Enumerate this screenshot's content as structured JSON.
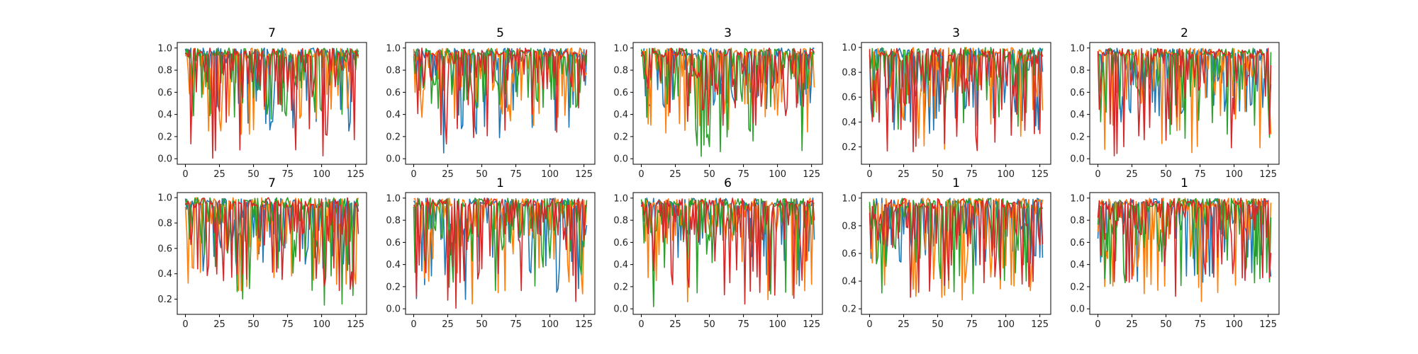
{
  "figure": {
    "background": "#ffffff",
    "series_colors": [
      "#1f77b4",
      "#ff7f0e",
      "#2ca02c",
      "#d62728"
    ]
  },
  "chart_data": [
    {
      "type": "line",
      "title": "7",
      "ylim": [
        -0.05,
        1.05
      ],
      "xlim": [
        -6,
        133
      ],
      "yticks": [
        0.0,
        0.2,
        0.4,
        0.6,
        0.8,
        1.0
      ],
      "xticks": [
        0,
        25,
        50,
        75,
        100,
        125
      ],
      "n_points": 128,
      "min_values": [
        0.25,
        0.22,
        0.3,
        0.0
      ],
      "series": [
        {
          "color": "#1f77b4"
        },
        {
          "color": "#ff7f0e"
        },
        {
          "color": "#2ca02c"
        },
        {
          "color": "#d62728"
        }
      ]
    },
    {
      "type": "line",
      "title": "5",
      "ylim": [
        -0.05,
        1.05
      ],
      "xlim": [
        -6,
        133
      ],
      "yticks": [
        0.0,
        0.2,
        0.4,
        0.6,
        0.8,
        1.0
      ],
      "xticks": [
        0,
        25,
        50,
        75,
        100,
        125
      ],
      "n_points": 128,
      "min_values": [
        0.01,
        0.3,
        0.45,
        0.05
      ],
      "series": [
        {
          "color": "#1f77b4"
        },
        {
          "color": "#ff7f0e"
        },
        {
          "color": "#2ca02c"
        },
        {
          "color": "#d62728"
        }
      ]
    },
    {
      "type": "line",
      "title": "3",
      "ylim": [
        -0.05,
        1.05
      ],
      "xlim": [
        -6,
        133
      ],
      "yticks": [
        0.0,
        0.2,
        0.4,
        0.6,
        0.8,
        1.0
      ],
      "xticks": [
        0,
        25,
        50,
        75,
        100,
        125
      ],
      "n_points": 128,
      "min_values": [
        0.45,
        0.2,
        0.0,
        0.3
      ],
      "series": [
        {
          "color": "#1f77b4"
        },
        {
          "color": "#ff7f0e"
        },
        {
          "color": "#2ca02c"
        },
        {
          "color": "#d62728"
        }
      ]
    },
    {
      "type": "line",
      "title": "3",
      "ylim": [
        0.06,
        1.04
      ],
      "xlim": [
        -6,
        133
      ],
      "yticks": [
        0.2,
        0.4,
        0.6,
        0.8,
        1.0
      ],
      "xticks": [
        0,
        25,
        50,
        75,
        100,
        125
      ],
      "n_points": 128,
      "min_values": [
        0.3,
        0.18,
        0.3,
        0.11
      ],
      "series": [
        {
          "color": "#1f77b4"
        },
        {
          "color": "#ff7f0e"
        },
        {
          "color": "#2ca02c"
        },
        {
          "color": "#d62728"
        }
      ]
    },
    {
      "type": "line",
      "title": "2",
      "ylim": [
        -0.05,
        1.05
      ],
      "xlim": [
        -6,
        133
      ],
      "yticks": [
        0.0,
        0.2,
        0.4,
        0.6,
        0.8,
        1.0
      ],
      "xticks": [
        0,
        25,
        50,
        75,
        100,
        125
      ],
      "n_points": 128,
      "min_values": [
        0.3,
        0.0,
        0.15,
        0.02
      ],
      "series": [
        {
          "color": "#1f77b4"
        },
        {
          "color": "#ff7f0e"
        },
        {
          "color": "#2ca02c"
        },
        {
          "color": "#d62728"
        }
      ]
    },
    {
      "type": "line",
      "title": "7",
      "ylim": [
        0.08,
        1.04
      ],
      "xlim": [
        -6,
        133
      ],
      "yticks": [
        0.2,
        0.4,
        0.6,
        0.8,
        1.0
      ],
      "xticks": [
        0,
        25,
        50,
        75,
        100,
        125
      ],
      "n_points": 128,
      "min_values": [
        0.42,
        0.25,
        0.12,
        0.26
      ],
      "series": [
        {
          "color": "#1f77b4"
        },
        {
          "color": "#ff7f0e"
        },
        {
          "color": "#2ca02c"
        },
        {
          "color": "#d62728"
        }
      ]
    },
    {
      "type": "line",
      "title": "1",
      "ylim": [
        -0.05,
        1.05
      ],
      "xlim": [
        -6,
        133
      ],
      "yticks": [
        0.0,
        0.2,
        0.4,
        0.6,
        0.8,
        1.0
      ],
      "xticks": [
        0,
        25,
        50,
        75,
        100,
        125
      ],
      "n_points": 128,
      "min_values": [
        0.08,
        0.0,
        0.12,
        0.0
      ],
      "series": [
        {
          "color": "#1f77b4"
        },
        {
          "color": "#ff7f0e"
        },
        {
          "color": "#2ca02c"
        },
        {
          "color": "#d62728"
        }
      ]
    },
    {
      "type": "line",
      "title": "6",
      "ylim": [
        -0.05,
        1.05
      ],
      "xlim": [
        -6,
        133
      ],
      "yticks": [
        0.0,
        0.2,
        0.4,
        0.6,
        0.8,
        1.0
      ],
      "xticks": [
        0,
        25,
        50,
        75,
        100,
        125
      ],
      "n_points": 128,
      "min_values": [
        0.2,
        0.05,
        0.0,
        0.02
      ],
      "series": [
        {
          "color": "#1f77b4"
        },
        {
          "color": "#ff7f0e"
        },
        {
          "color": "#2ca02c"
        },
        {
          "color": "#d62728"
        }
      ]
    },
    {
      "type": "line",
      "title": "1",
      "ylim": [
        0.16,
        1.04
      ],
      "xlim": [
        -6,
        133
      ],
      "yticks": [
        0.2,
        0.4,
        0.6,
        0.8,
        1.0
      ],
      "xticks": [
        0,
        25,
        50,
        75,
        100,
        125
      ],
      "n_points": 128,
      "min_values": [
        0.5,
        0.26,
        0.3,
        0.25
      ],
      "series": [
        {
          "color": "#1f77b4"
        },
        {
          "color": "#ff7f0e"
        },
        {
          "color": "#2ca02c"
        },
        {
          "color": "#d62728"
        }
      ]
    },
    {
      "type": "line",
      "title": "1",
      "ylim": [
        -0.05,
        1.05
      ],
      "xlim": [
        -6,
        133
      ],
      "yticks": [
        0.0,
        0.2,
        0.4,
        0.6,
        0.8,
        1.0
      ],
      "xticks": [
        0,
        25,
        50,
        75,
        100,
        125
      ],
      "n_points": 128,
      "min_values": [
        0.15,
        0.05,
        0.2,
        0.1
      ],
      "series": [
        {
          "color": "#1f77b4"
        },
        {
          "color": "#ff7f0e"
        },
        {
          "color": "#2ca02c"
        },
        {
          "color": "#d62728"
        }
      ]
    }
  ]
}
